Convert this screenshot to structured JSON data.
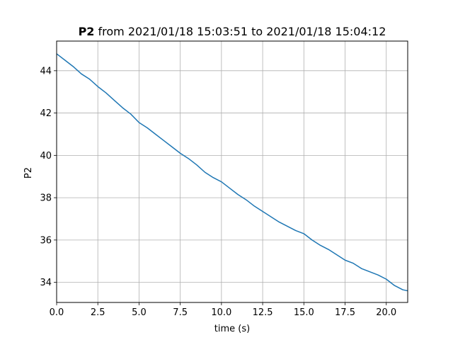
{
  "chart_data": {
    "type": "line",
    "title_bold": "P2",
    "title_rest": " from 2021/01/18 15:03:51 to 2021/01/18 15:04:12",
    "xlabel": "time (s)",
    "ylabel": "P2",
    "xlim": [
      0,
      21.3
    ],
    "ylim": [
      33.05,
      45.4
    ],
    "x_ticks": [
      0.0,
      2.5,
      5.0,
      7.5,
      10.0,
      12.5,
      15.0,
      17.5,
      20.0
    ],
    "x_tick_labels": [
      "0.0",
      "2.5",
      "5.0",
      "7.5",
      "10.0",
      "12.5",
      "15.0",
      "17.5",
      "20.0"
    ],
    "y_ticks": [
      34,
      36,
      38,
      40,
      42,
      44
    ],
    "y_tick_labels": [
      "34",
      "36",
      "38",
      "40",
      "42",
      "44"
    ],
    "grid": true,
    "line_color": "#1f77b4",
    "series": [
      {
        "x": [
          0.0,
          0.5,
          1.0,
          1.5,
          2.0,
          2.5,
          3.0,
          3.5,
          4.0,
          4.5,
          5.0,
          5.5,
          6.0,
          6.5,
          7.0,
          7.5,
          8.0,
          8.5,
          9.0,
          9.5,
          10.0,
          10.5,
          11.0,
          11.5,
          12.0,
          12.5,
          13.0,
          13.5,
          14.0,
          14.5,
          15.0,
          15.5,
          16.0,
          16.5,
          17.0,
          17.5,
          18.0,
          18.5,
          19.0,
          19.5,
          20.0,
          20.5,
          21.0,
          21.3
        ],
        "values": [
          44.8,
          44.5,
          44.2,
          43.85,
          43.6,
          43.25,
          42.95,
          42.6,
          42.25,
          41.95,
          41.55,
          41.3,
          41.0,
          40.7,
          40.4,
          40.1,
          39.85,
          39.55,
          39.2,
          38.95,
          38.75,
          38.45,
          38.15,
          37.9,
          37.6,
          37.35,
          37.1,
          36.85,
          36.65,
          36.45,
          36.3,
          36.0,
          35.75,
          35.55,
          35.3,
          35.05,
          34.9,
          34.65,
          34.5,
          34.35,
          34.15,
          33.85,
          33.65,
          33.6
        ]
      }
    ]
  }
}
